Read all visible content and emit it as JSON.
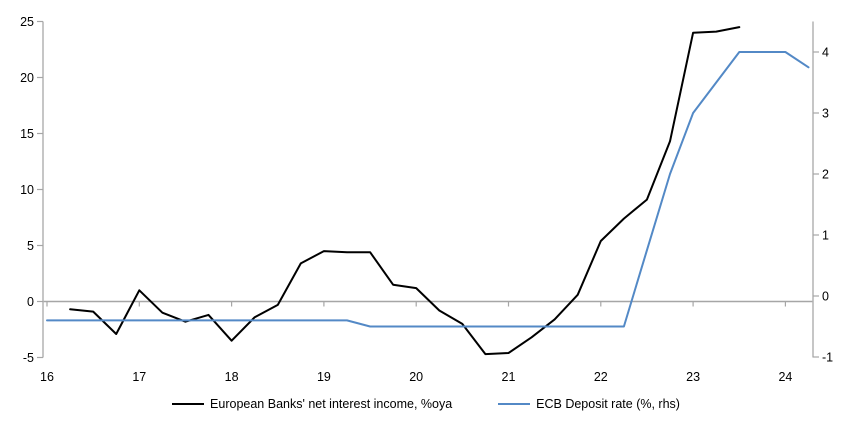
{
  "chart_data": {
    "type": "line",
    "title": "",
    "x_axis": {
      "ticks": [
        16,
        17,
        18,
        19,
        20,
        21,
        22,
        23,
        24
      ],
      "min": 16,
      "max": 24.3
    },
    "left_axis": {
      "ticks": [
        -5,
        0,
        5,
        10,
        15,
        20,
        25
      ],
      "range": [
        -5,
        25
      ]
    },
    "right_axis": {
      "ticks": [
        -1,
        0,
        1,
        2,
        3,
        4
      ],
      "range": [
        -1,
        4.5
      ]
    },
    "grid": "zero-line-only",
    "legend_position": "bottom",
    "series": [
      {
        "name": "European Banks' net interest income, %oya",
        "axis": "left",
        "color": "#000000",
        "x": [
          16.25,
          16.5,
          16.75,
          17.0,
          17.25,
          17.5,
          17.75,
          18.0,
          18.25,
          18.5,
          18.75,
          19.0,
          19.25,
          19.5,
          19.75,
          20.0,
          20.25,
          20.5,
          20.75,
          21.0,
          21.25,
          21.5,
          21.75,
          22.0,
          22.25,
          22.5,
          22.75,
          23.0,
          23.25,
          23.5
        ],
        "values": [
          -0.7,
          -0.9,
          -2.9,
          1.0,
          -1.0,
          -1.8,
          -1.2,
          -3.5,
          -1.4,
          -0.3,
          3.4,
          4.5,
          4.4,
          4.4,
          1.5,
          1.2,
          -0.8,
          -2.0,
          -4.7,
          -4.6,
          -3.2,
          -1.6,
          0.6,
          5.4,
          7.4,
          9.1,
          14.3,
          24.0,
          24.1,
          24.5
        ]
      },
      {
        "name": "ECB Deposit rate (%, rhs)",
        "axis": "right",
        "color": "#5389C6",
        "x": [
          16.0,
          16.25,
          16.5,
          16.75,
          17.0,
          17.25,
          17.5,
          17.75,
          18.0,
          18.25,
          18.5,
          18.75,
          19.0,
          19.25,
          19.5,
          19.75,
          20.0,
          20.25,
          20.5,
          20.75,
          21.0,
          21.25,
          21.5,
          21.75,
          22.0,
          22.25,
          22.5,
          22.75,
          23.0,
          23.25,
          23.5,
          23.75,
          24.0,
          24.25
        ],
        "values": [
          -0.4,
          -0.4,
          -0.4,
          -0.4,
          -0.4,
          -0.4,
          -0.4,
          -0.4,
          -0.4,
          -0.4,
          -0.4,
          -0.4,
          -0.4,
          -0.4,
          -0.5,
          -0.5,
          -0.5,
          -0.5,
          -0.5,
          -0.5,
          -0.5,
          -0.5,
          -0.5,
          -0.5,
          -0.5,
          -0.5,
          0.75,
          2.0,
          3.0,
          3.5,
          4.0,
          4.0,
          4.0,
          3.75
        ]
      }
    ]
  },
  "colors": {
    "background": "#FFFFFF",
    "zero_line": "#A6A6A6",
    "spine": "#B3B3B3",
    "tick": "#A6A6A6",
    "text": "#000000"
  }
}
